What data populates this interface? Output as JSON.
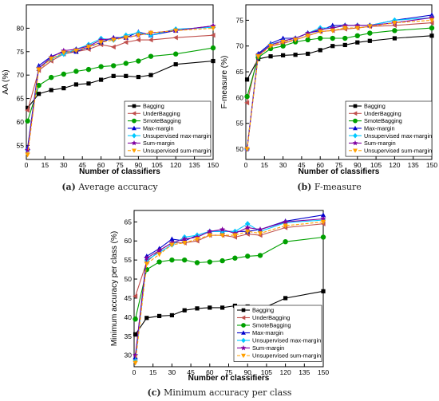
{
  "panels": [
    {
      "caption_label": "(a)",
      "caption_text": "Average accuracy",
      "chart_data": {
        "type": "line",
        "xlabel": "Number of classifiers",
        "ylabel": "AA (%)",
        "xlim": [
          0,
          150
        ],
        "ylim": [
          52,
          85
        ],
        "xticks": [
          0,
          15,
          30,
          45,
          60,
          75,
          90,
          105,
          120,
          135,
          150
        ],
        "yticks": [
          55,
          60,
          65,
          70,
          75,
          80
        ],
        "legend_position": "bottom-right",
        "x": [
          1,
          10,
          20,
          30,
          40,
          50,
          60,
          70,
          80,
          90,
          100,
          120,
          150
        ],
        "series": [
          {
            "name": "Bagging",
            "color": "#000000",
            "marker": "square",
            "dash": "",
            "values": [
              63,
              66,
              66.8,
              67.2,
              68,
              68.2,
              69,
              69.8,
              69.8,
              69.6,
              70,
              72.3,
              73
            ]
          },
          {
            "name": "UnderBagging",
            "color": "#c0504d",
            "marker": "tri-left",
            "dash": "",
            "values": [
              62.5,
              71,
              73,
              74.5,
              75,
              75.5,
              76.5,
              76,
              77,
              77.5,
              77.5,
              78,
              78.5
            ]
          },
          {
            "name": "SmoteBagging",
            "color": "#00a000",
            "marker": "circle",
            "dash": "",
            "values": [
              60.2,
              67.8,
              69.5,
              70.2,
              70.8,
              71.2,
              71.8,
              72,
              72.5,
              73,
              74,
              74.5,
              75.8
            ]
          },
          {
            "name": "Max-margin",
            "color": "#0000cc",
            "marker": "triangle",
            "dash": "",
            "values": [
              54.5,
              72,
              74,
              75,
              75,
              76,
              77,
              78,
              78,
              79.2,
              78.5,
              79.5,
              80.5
            ]
          },
          {
            "name": "Unsupervised max-margin",
            "color": "#00c8ff",
            "marker": "diamond",
            "dash": "",
            "values": [
              54,
              71.5,
              73.5,
              74.5,
              75.5,
              76.5,
              77.8,
              77.5,
              78.5,
              79,
              78.5,
              79.8,
              80.2
            ]
          },
          {
            "name": "Sum-margin",
            "color": "#8000a0",
            "marker": "star",
            "dash": "",
            "values": [
              54,
              71.5,
              73.8,
              75.2,
              75.5,
              76.2,
              77.5,
              77.8,
              78,
              78.5,
              79,
              79.5,
              80.5
            ]
          },
          {
            "name": "Unsupervised sum-margin",
            "color": "#ffa000",
            "marker": "tri-down",
            "dash": "4,2",
            "values": [
              53,
              71.2,
              73.5,
              74.8,
              75.2,
              76,
              77,
              77.5,
              78,
              78.5,
              79,
              79.5,
              80
            ]
          }
        ]
      }
    },
    {
      "caption_label": "(b)",
      "caption_text": "F-measure",
      "chart_data": {
        "type": "line",
        "xlabel": "Number of classifiers",
        "ylabel": "F-measure (%)",
        "xlim": [
          0,
          150
        ],
        "ylim": [
          48,
          78
        ],
        "xticks": [
          0,
          15,
          30,
          45,
          60,
          75,
          90,
          105,
          120,
          135,
          150
        ],
        "yticks": [
          50,
          55,
          60,
          65,
          70,
          75
        ],
        "legend_position": "bottom-right",
        "x": [
          1,
          10,
          20,
          30,
          40,
          50,
          60,
          70,
          80,
          90,
          100,
          120,
          150
        ],
        "series": [
          {
            "name": "Bagging",
            "color": "#000000",
            "marker": "square",
            "dash": "",
            "values": [
              63.5,
              67.5,
              68,
              68.2,
              68.3,
              68.5,
              69.2,
              70,
              70.2,
              70.7,
              71,
              71.5,
              72
            ]
          },
          {
            "name": "UnderBagging",
            "color": "#c0504d",
            "marker": "tri-left",
            "dash": "",
            "values": [
              59,
              68.5,
              70,
              70.5,
              71.2,
              72,
              72.8,
              73,
              73.3,
              73.5,
              73.8,
              74,
              74.5
            ]
          },
          {
            "name": "SmoteBagging",
            "color": "#00a000",
            "marker": "circle",
            "dash": "",
            "values": [
              60.2,
              67.8,
              69.5,
              70,
              70.8,
              71.2,
              71.5,
              71.5,
              71.5,
              72,
              72.5,
              73,
              73.5
            ]
          },
          {
            "name": "Max-margin",
            "color": "#0000cc",
            "marker": "triangle",
            "dash": "",
            "values": [
              50.2,
              68.5,
              70.5,
              71.5,
              71.5,
              72.5,
              73,
              74,
              74,
              74,
              74,
              75,
              76
            ]
          },
          {
            "name": "Unsupervised max-margin",
            "color": "#00c8ff",
            "marker": "diamond",
            "dash": "",
            "values": [
              50,
              68.2,
              70.3,
              71,
              71.5,
              72.5,
              73.5,
              73.5,
              74,
              74,
              74,
              75,
              75.5
            ]
          },
          {
            "name": "Sum-margin",
            "color": "#8000a0",
            "marker": "star",
            "dash": "",
            "values": [
              50,
              68.2,
              70.2,
              71,
              71.5,
              72.5,
              73.2,
              73.5,
              74,
              74,
              74,
              74.5,
              75.5
            ]
          },
          {
            "name": "Unsupervised sum-margin",
            "color": "#ffa000",
            "marker": "tri-down",
            "dash": "4,2",
            "values": [
              50,
              68,
              70,
              70.8,
              71.2,
              72,
              72.8,
              73,
              73.5,
              73.5,
              73.8,
              74.5,
              75
            ]
          }
        ]
      }
    },
    {
      "caption_label": "(c)",
      "caption_text": "Minimum accuracy per class",
      "chart_data": {
        "type": "line",
        "xlabel": "Number of classifiers",
        "ylabel": "Minimum accuracy per class (%)",
        "xlim": [
          0,
          150
        ],
        "ylim": [
          27,
          68
        ],
        "xticks": [
          0,
          15,
          30,
          45,
          60,
          75,
          90,
          105,
          120,
          135,
          150
        ],
        "yticks": [
          30,
          35,
          40,
          45,
          50,
          55,
          60,
          65
        ],
        "legend_position": "bottom-right",
        "x": [
          1,
          10,
          20,
          30,
          40,
          50,
          60,
          70,
          80,
          90,
          100,
          120,
          150
        ],
        "series": [
          {
            "name": "Bagging",
            "color": "#000000",
            "marker": "square",
            "dash": "",
            "values": [
              35.5,
              39.8,
              40.3,
              40.5,
              41.8,
              42.3,
              42.5,
              42.5,
              43,
              42.8,
              42,
              45,
              46.8
            ]
          },
          {
            "name": "UnderBagging",
            "color": "#c0504d",
            "marker": "tri-left",
            "dash": "",
            "values": [
              45.5,
              54.5,
              57.5,
              59.5,
              59.5,
              60,
              61.5,
              61.5,
              61,
              61.8,
              61.5,
              63.5,
              64.5
            ]
          },
          {
            "name": "SmoteBagging",
            "color": "#00a000",
            "marker": "circle",
            "dash": "",
            "values": [
              39.5,
              52.5,
              54.5,
              55,
              55,
              54.3,
              54.5,
              54.8,
              55.5,
              56,
              56.2,
              59.8,
              61
            ]
          },
          {
            "name": "Max-margin",
            "color": "#0000cc",
            "marker": "triangle",
            "dash": "",
            "values": [
              29.5,
              56,
              58,
              60.5,
              60,
              61.5,
              62.5,
              62.5,
              62.5,
              62.5,
              63,
              65.2,
              66.8
            ]
          },
          {
            "name": "Unsupervised max-margin",
            "color": "#00c8ff",
            "marker": "diamond",
            "dash": "",
            "values": [
              28.5,
              55,
              57,
              59,
              61,
              61.5,
              62.5,
              62.5,
              62.5,
              64.5,
              62.5,
              64.8,
              65.5
            ]
          },
          {
            "name": "Sum-margin",
            "color": "#8000a0",
            "marker": "star",
            "dash": "",
            "values": [
              30,
              55.5,
              57.5,
              59.5,
              60.5,
              61,
              62.5,
              63,
              62,
              63.5,
              63,
              65,
              65.8
            ]
          },
          {
            "name": "Unsupervised sum-margin",
            "color": "#ffa000",
            "marker": "tri-down",
            "dash": "4,2",
            "values": [
              28,
              54,
              56.5,
              59,
              59.5,
              60.5,
              61.5,
              61.5,
              61.5,
              62.5,
              62,
              64,
              65
            ]
          }
        ]
      }
    }
  ]
}
